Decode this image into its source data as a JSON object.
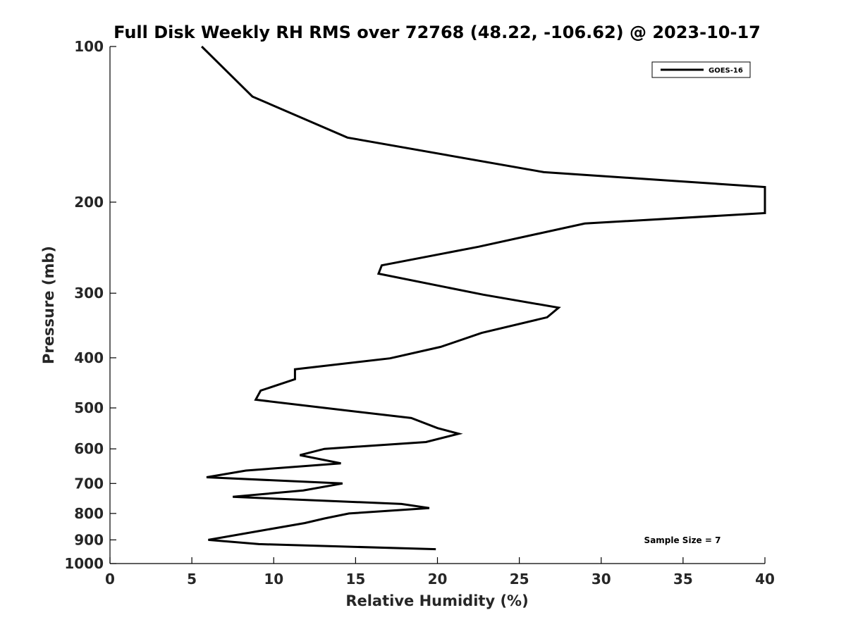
{
  "chart_data": {
    "type": "line",
    "title": "Full Disk Weekly RH RMS over 72768 (48.22, -106.62) @ 2023-10-17",
    "xlabel": "Relative Humidity (%)",
    "ylabel": "Pressure (mb)",
    "xlim": [
      0,
      40
    ],
    "ylim": [
      100,
      1000
    ],
    "y_scale": "log",
    "y_reversed": true,
    "x_ticks": [
      "0",
      "5",
      "10",
      "15",
      "20",
      "25",
      "30",
      "35",
      "40"
    ],
    "y_ticks": [
      "100",
      "200",
      "300",
      "400",
      "500",
      "600",
      "700",
      "800",
      "900",
      "1000"
    ],
    "grid": false,
    "legend_position": "top-right",
    "annotation": "Sample Size = 7",
    "line_color": "#000000",
    "series": [
      {
        "name": "GOES-16",
        "points": [
          [
            5.6,
            100
          ],
          [
            8.7,
            125
          ],
          [
            14.5,
            150
          ],
          [
            26.5,
            175
          ],
          [
            40.0,
            187
          ],
          [
            40.0,
            210
          ],
          [
            29.0,
            220
          ],
          [
            22.5,
            244
          ],
          [
            16.6,
            265
          ],
          [
            16.4,
            275
          ],
          [
            22.8,
            302
          ],
          [
            27.4,
            320
          ],
          [
            26.7,
            334
          ],
          [
            22.7,
            358
          ],
          [
            20.2,
            381
          ],
          [
            17.1,
            401
          ],
          [
            11.3,
            421
          ],
          [
            11.3,
            440
          ],
          [
            9.2,
            463
          ],
          [
            8.9,
            482
          ],
          [
            13.1,
            500
          ],
          [
            18.4,
            523
          ],
          [
            20.0,
            547
          ],
          [
            21.3,
            561
          ],
          [
            19.3,
            582
          ],
          [
            13.1,
            600
          ],
          [
            11.6,
            617
          ],
          [
            14.1,
            640
          ],
          [
            8.3,
            661
          ],
          [
            5.9,
            681
          ],
          [
            14.2,
            700
          ],
          [
            11.8,
            722
          ],
          [
            7.5,
            743
          ],
          [
            17.8,
            767
          ],
          [
            19.5,
            781
          ],
          [
            14.6,
            800
          ],
          [
            13.1,
            818
          ],
          [
            11.9,
            835
          ],
          [
            9.3,
            863
          ],
          [
            6.0,
            900
          ],
          [
            9.1,
            917
          ],
          [
            19.9,
            938
          ]
        ]
      }
    ]
  }
}
